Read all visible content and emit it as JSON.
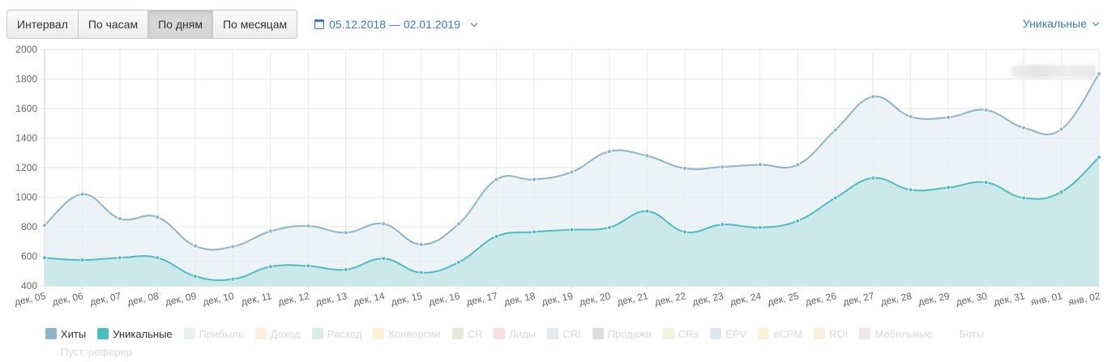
{
  "toolbar": {
    "buttons": [
      {
        "label": "Интервал",
        "active": false
      },
      {
        "label": "По часам",
        "active": false
      },
      {
        "label": "По дням",
        "active": true
      },
      {
        "label": "По месяцам",
        "active": false
      }
    ],
    "date_range": "05.12.2018 — 02.01.2019",
    "metric_select": "Уникальные"
  },
  "chart_data": {
    "type": "area",
    "categories": [
      "дек, 05",
      "дек, 06",
      "дек, 07",
      "дек, 08",
      "дек, 09",
      "дек, 10",
      "дек, 11",
      "дек, 12",
      "дек, 13",
      "дек, 14",
      "дек, 15",
      "дек, 16",
      "дек, 17",
      "дек, 18",
      "дек, 19",
      "дек, 20",
      "дек, 21",
      "дек, 22",
      "дек, 23",
      "дек, 24",
      "дек, 25",
      "дек, 26",
      "дек, 27",
      "дек, 28",
      "дек, 29",
      "дек, 30",
      "дек, 31",
      "янв, 01",
      "янв, 02"
    ],
    "ylim": [
      400,
      2000
    ],
    "yticks": [
      400,
      600,
      800,
      1000,
      1200,
      1400,
      1600,
      1800,
      2000
    ],
    "grid": true,
    "series": [
      {
        "name": "Хиты",
        "color": "#8fb4c8",
        "fill": "#e6eff3",
        "values": [
          810,
          1020,
          855,
          865,
          670,
          665,
          770,
          805,
          760,
          820,
          680,
          820,
          1120,
          1120,
          1170,
          1310,
          1280,
          1195,
          1205,
          1220,
          1220,
          1455,
          1680,
          1545,
          1540,
          1590,
          1470,
          1460,
          1835
        ]
      },
      {
        "name": "Уникальные",
        "color": "#4fbcbf",
        "fill": "#c6e5e8",
        "values": [
          590,
          575,
          590,
          590,
          465,
          445,
          530,
          535,
          510,
          585,
          490,
          560,
          735,
          765,
          780,
          795,
          905,
          765,
          815,
          795,
          840,
          995,
          1130,
          1050,
          1065,
          1100,
          995,
          1035,
          1270
        ]
      }
    ]
  },
  "legend": [
    {
      "label": "Хиты",
      "color": "#8fb4c8",
      "on": true
    },
    {
      "label": "Уникальные",
      "color": "#4fbcbf",
      "on": true
    },
    {
      "label": "Прибыль",
      "color": "#e7f1ee",
      "on": false
    },
    {
      "label": "Доход",
      "color": "#fdeede",
      "on": false
    },
    {
      "label": "Расход",
      "color": "#d9ece5",
      "on": false
    },
    {
      "label": "Конверсии",
      "color": "#fdf0d4",
      "on": false
    },
    {
      "label": "CR",
      "color": "#e6e9dc",
      "on": false
    },
    {
      "label": "Лиды",
      "color": "#f8dfe0",
      "on": false
    },
    {
      "label": "CRI",
      "color": "#e7e9f0",
      "on": false
    },
    {
      "label": "Продажи",
      "color": "#dcdcdc",
      "on": false
    },
    {
      "label": "CRs",
      "color": "#f6f3dd",
      "on": false
    },
    {
      "label": "EPV",
      "color": "#dfe7f1",
      "on": false
    },
    {
      "label": "eCPM",
      "color": "#fbf1d6",
      "on": false
    },
    {
      "label": "ROI",
      "color": "#faf0da",
      "on": false
    },
    {
      "label": "Мобильные",
      "color": "#efe8e6",
      "on": false
    },
    {
      "label": "Боты",
      "color": "#ffffff",
      "on": false
    },
    {
      "label": "Пуст. реферер",
      "color": "#ffffff",
      "on": false
    }
  ]
}
